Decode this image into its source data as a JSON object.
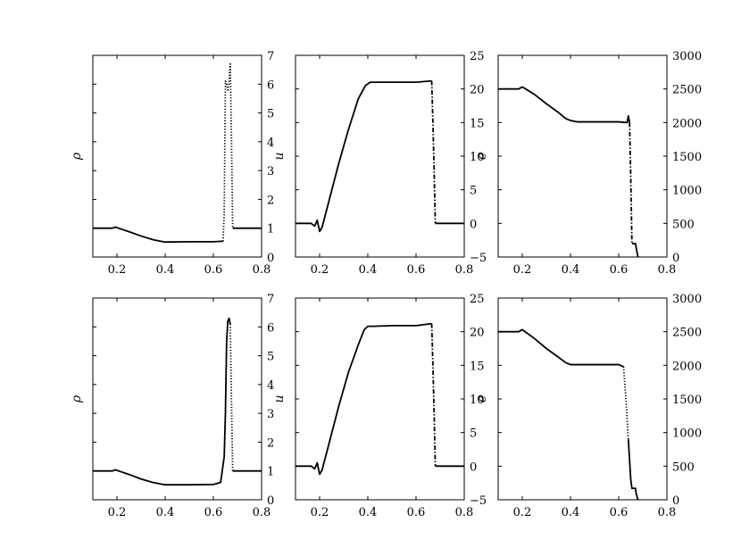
{
  "chart_data": [
    {
      "type": "line",
      "row": 0,
      "col": 0,
      "ylabel": "ρ",
      "xlim": [
        0.1,
        0.8
      ],
      "ylim": [
        0,
        7
      ],
      "xticks": [
        0.2,
        0.4,
        0.6,
        0.8
      ],
      "xtick_labels": [
        "0.2",
        "0.4",
        "0.6",
        "0.8"
      ],
      "yticks": [
        0,
        1,
        2,
        3,
        4,
        5,
        6,
        7
      ],
      "ytick_labels": [
        "0",
        "1",
        "2",
        "3",
        "4",
        "5",
        "6",
        "7"
      ],
      "ytick_side": "right",
      "series": [
        {
          "style": "solid",
          "x": [
            0.1,
            0.18,
            0.195,
            0.2,
            0.25,
            0.3,
            0.35,
            0.38,
            0.4,
            0.5,
            0.6,
            0.64
          ],
          "y": [
            1.0,
            1.0,
            1.04,
            1.02,
            0.88,
            0.73,
            0.6,
            0.55,
            0.52,
            0.53,
            0.53,
            0.55
          ]
        },
        {
          "style": "dotted",
          "x": [
            0.64,
            0.645,
            0.65,
            0.655,
            0.66,
            0.665,
            0.67,
            0.675,
            0.68
          ],
          "y": [
            0.55,
            1.5,
            6.1,
            6.0,
            5.8,
            6.1,
            6.7,
            4.2,
            1.0
          ]
        },
        {
          "style": "solid",
          "x": [
            0.68,
            0.8
          ],
          "y": [
            1.0,
            1.0
          ]
        }
      ]
    },
    {
      "type": "line",
      "row": 0,
      "col": 1,
      "ylabel": "u",
      "xlim": [
        0.1,
        0.8
      ],
      "ylim": [
        -5,
        25
      ],
      "xticks": [
        0.2,
        0.4,
        0.6,
        0.8
      ],
      "xtick_labels": [
        "0.2",
        "0.4",
        "0.6",
        "0.8"
      ],
      "yticks": [
        -5,
        0,
        5,
        10,
        15,
        20,
        25
      ],
      "ytick_labels": [
        "−5",
        "0",
        "5",
        "10",
        "15",
        "20",
        "25"
      ],
      "ytick_side": "right",
      "series": [
        {
          "style": "solid",
          "x": [
            0.1,
            0.165,
            0.18,
            0.19,
            0.2,
            0.21,
            0.24,
            0.28,
            0.32,
            0.36,
            0.39,
            0.41,
            0.43,
            0.5,
            0.6,
            0.665
          ],
          "y": [
            0.0,
            0.0,
            -0.4,
            0.5,
            -1.2,
            -0.6,
            3.5,
            9.0,
            14.0,
            18.5,
            20.5,
            21.0,
            21.0,
            21.0,
            21.0,
            21.2
          ]
        },
        {
          "style": "dashdot",
          "x": [
            0.665,
            0.67,
            0.675,
            0.68
          ],
          "y": [
            21.2,
            15.0,
            8.0,
            0.0
          ]
        },
        {
          "style": "solid",
          "x": [
            0.68,
            0.8
          ],
          "y": [
            0.0,
            0.0
          ]
        }
      ]
    },
    {
      "type": "line",
      "row": 0,
      "col": 2,
      "ylabel": "e",
      "xlim": [
        0.1,
        0.8
      ],
      "ylim": [
        0,
        3000
      ],
      "xticks": [
        0.2,
        0.4,
        0.6,
        0.8
      ],
      "xtick_labels": [
        "0.2",
        "0.4",
        "0.6",
        "0.8"
      ],
      "yticks": [
        0,
        500,
        1000,
        1500,
        2000,
        2500,
        3000
      ],
      "ytick_labels": [
        "0",
        "500",
        "1000",
        "1500",
        "2000",
        "2500",
        "3000"
      ],
      "ytick_side": "right",
      "series": [
        {
          "style": "solid",
          "x": [
            0.1,
            0.185,
            0.195,
            0.2,
            0.25,
            0.3,
            0.35,
            0.38,
            0.4,
            0.43,
            0.5,
            0.6,
            0.635,
            0.64,
            0.645
          ],
          "y": [
            2500,
            2500,
            2520,
            2530,
            2420,
            2280,
            2150,
            2060,
            2030,
            2010,
            2010,
            2010,
            2000,
            2100,
            2000
          ]
        },
        {
          "style": "dashdot",
          "x": [
            0.645,
            0.65,
            0.655
          ],
          "y": [
            2000,
            1200,
            200
          ]
        },
        {
          "style": "solid",
          "x": [
            0.655,
            0.67,
            0.672,
            0.68
          ],
          "y": [
            200,
            200,
            150,
            0
          ]
        }
      ]
    },
    {
      "type": "line",
      "row": 1,
      "col": 0,
      "ylabel": "ρ",
      "xlim": [
        0.1,
        0.8
      ],
      "ylim": [
        0,
        7
      ],
      "xticks": [
        0.2,
        0.4,
        0.6,
        0.8
      ],
      "xtick_labels": [
        "0.2",
        "0.4",
        "0.6",
        "0.8"
      ],
      "yticks": [
        0,
        1,
        2,
        3,
        4,
        5,
        6,
        7
      ],
      "ytick_labels": [
        "0",
        "1",
        "2",
        "3",
        "4",
        "5",
        "6",
        "7"
      ],
      "ytick_side": "right",
      "series": [
        {
          "style": "solid",
          "x": [
            0.1,
            0.18,
            0.195,
            0.2,
            0.25,
            0.3,
            0.35,
            0.38,
            0.4,
            0.5,
            0.6,
            0.63,
            0.645,
            0.65,
            0.655,
            0.66,
            0.665,
            0.67
          ],
          "y": [
            1.0,
            1.0,
            1.04,
            1.02,
            0.88,
            0.72,
            0.6,
            0.55,
            0.52,
            0.52,
            0.53,
            0.6,
            1.5,
            3.0,
            5.5,
            6.2,
            6.3,
            6.1
          ]
        },
        {
          "style": "dotted",
          "x": [
            0.67,
            0.675,
            0.68
          ],
          "y": [
            6.1,
            3.5,
            1.0
          ]
        },
        {
          "style": "solid",
          "x": [
            0.68,
            0.8
          ],
          "y": [
            1.0,
            1.0
          ]
        }
      ]
    },
    {
      "type": "line",
      "row": 1,
      "col": 1,
      "ylabel": "u",
      "xlim": [
        0.1,
        0.8
      ],
      "ylim": [
        -5,
        25
      ],
      "xticks": [
        0.2,
        0.4,
        0.6,
        0.8
      ],
      "xtick_labels": [
        "0.2",
        "0.4",
        "0.6",
        "0.8"
      ],
      "yticks": [
        -5,
        0,
        5,
        10,
        15,
        20,
        25
      ],
      "ytick_labels": [
        "−5",
        "0",
        "5",
        "10",
        "15",
        "20",
        "25"
      ],
      "ytick_side": "right",
      "series": [
        {
          "style": "solid",
          "x": [
            0.1,
            0.165,
            0.18,
            0.19,
            0.2,
            0.21,
            0.24,
            0.28,
            0.32,
            0.36,
            0.385,
            0.4,
            0.42,
            0.5,
            0.6,
            0.665
          ],
          "y": [
            0.0,
            0.0,
            -0.4,
            0.5,
            -1.2,
            -0.6,
            3.5,
            9.0,
            14.0,
            18.0,
            20.3,
            20.8,
            20.8,
            20.9,
            20.9,
            21.2
          ]
        },
        {
          "style": "dashdot",
          "x": [
            0.665,
            0.67,
            0.675,
            0.68
          ],
          "y": [
            21.2,
            15.0,
            8.0,
            0.0
          ]
        },
        {
          "style": "solid",
          "x": [
            0.68,
            0.8
          ],
          "y": [
            0.0,
            0.0
          ]
        }
      ]
    },
    {
      "type": "line",
      "row": 1,
      "col": 2,
      "ylabel": "e",
      "xlim": [
        0.1,
        0.8
      ],
      "ylim": [
        0,
        3000
      ],
      "xticks": [
        0.2,
        0.4,
        0.6,
        0.8
      ],
      "xtick_labels": [
        "0.2",
        "0.4",
        "0.6",
        "0.8"
      ],
      "yticks": [
        0,
        500,
        1000,
        1500,
        2000,
        2500,
        3000
      ],
      "ytick_labels": [
        "0",
        "500",
        "1000",
        "1500",
        "2000",
        "2500",
        "3000"
      ],
      "ytick_side": "right",
      "series": [
        {
          "style": "solid",
          "x": [
            0.1,
            0.185,
            0.195,
            0.2,
            0.25,
            0.3,
            0.35,
            0.38,
            0.4,
            0.5,
            0.6,
            0.62
          ],
          "y": [
            2500,
            2500,
            2520,
            2530,
            2400,
            2250,
            2120,
            2040,
            2010,
            2010,
            2010,
            1980
          ]
        },
        {
          "style": "dotted",
          "x": [
            0.62,
            0.63,
            0.64
          ],
          "y": [
            1980,
            1500,
            900
          ]
        },
        {
          "style": "solid",
          "x": [
            0.64,
            0.65,
            0.655,
            0.67,
            0.672,
            0.68
          ],
          "y": [
            900,
            300,
            170,
            170,
            100,
            0
          ]
        }
      ]
    }
  ]
}
